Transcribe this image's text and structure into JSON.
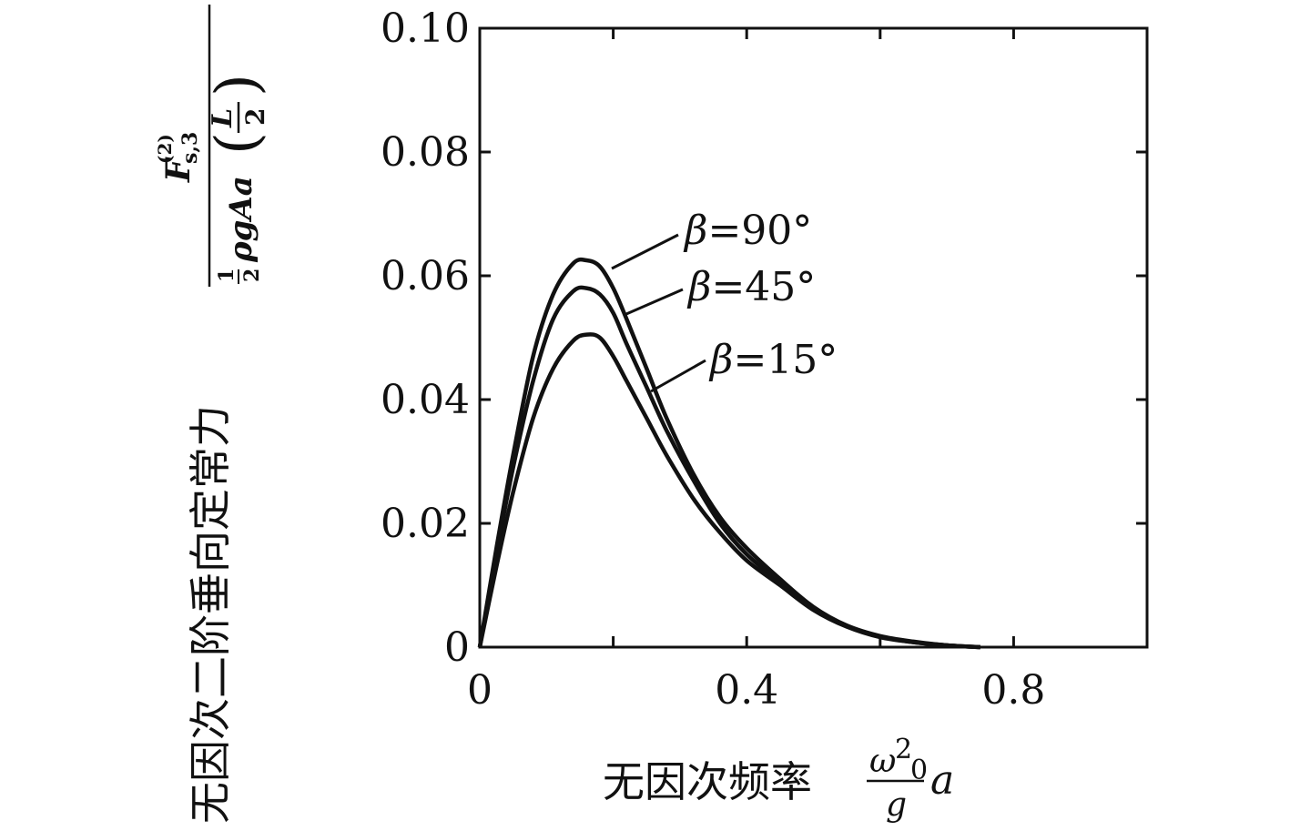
{
  "chart_data": {
    "type": "line",
    "xlabel": "无因次频率",
    "xlabel_formula": {
      "numerator": "ω",
      "numerator_sup": "2",
      "numerator_sub": "0",
      "denominator": "g",
      "trailing": "a"
    },
    "ylabel": "无因次二阶垂向定常力",
    "ylabel_formula": {
      "numerator": "F",
      "numerator_sup": "(2)",
      "numerator_sub": "s,3",
      "denominator_coef": "1",
      "denominator_coef_den": "2",
      "denominator_body": "ρgAa",
      "paren_num": "L",
      "paren_den": "2"
    },
    "xlim": [
      0,
      1.0
    ],
    "ylim": [
      0,
      0.1
    ],
    "x_ticks": [
      0,
      0.2,
      0.4,
      0.6,
      0.8,
      1.0
    ],
    "x_tick_labels": [
      "0",
      "0.4",
      "0.8"
    ],
    "x_tick_label_values": [
      0,
      0.4,
      0.8
    ],
    "y_ticks": [
      0,
      0.02,
      0.04,
      0.06,
      0.08,
      0.1
    ],
    "y_tick_labels": [
      "0",
      "0.02",
      "0.04",
      "0.06",
      "0.08",
      "0.10"
    ],
    "grid": false,
    "series": [
      {
        "name": "β=90°",
        "label_text": "β=90°",
        "x": [
          0,
          0.025,
          0.05,
          0.08,
          0.11,
          0.14,
          0.16,
          0.18,
          0.2,
          0.22,
          0.25,
          0.28,
          0.32,
          0.36,
          0.4,
          0.45,
          0.5,
          0.55,
          0.6,
          0.65,
          0.7,
          0.75
        ],
        "y": [
          0,
          0.016,
          0.031,
          0.047,
          0.057,
          0.062,
          0.0625,
          0.0615,
          0.058,
          0.053,
          0.045,
          0.037,
          0.028,
          0.021,
          0.016,
          0.011,
          0.0065,
          0.0035,
          0.0018,
          0.0009,
          0.0003,
          0
        ]
      },
      {
        "name": "β=45°",
        "label_text": "β=45°",
        "x": [
          0,
          0.025,
          0.05,
          0.08,
          0.11,
          0.14,
          0.16,
          0.18,
          0.2,
          0.22,
          0.25,
          0.28,
          0.32,
          0.36,
          0.4,
          0.45,
          0.5,
          0.55,
          0.6,
          0.65,
          0.7,
          0.75
        ],
        "y": [
          0,
          0.015,
          0.029,
          0.043,
          0.053,
          0.0575,
          0.058,
          0.057,
          0.054,
          0.049,
          0.042,
          0.035,
          0.027,
          0.02,
          0.015,
          0.0105,
          0.0063,
          0.0034,
          0.0017,
          0.0008,
          0.0003,
          0
        ]
      },
      {
        "name": "β=15°",
        "label_text": "β=15°",
        "x": [
          0,
          0.025,
          0.05,
          0.08,
          0.11,
          0.14,
          0.16,
          0.18,
          0.2,
          0.22,
          0.25,
          0.28,
          0.32,
          0.36,
          0.4,
          0.45,
          0.5,
          0.55,
          0.6,
          0.65,
          0.7,
          0.75
        ],
        "y": [
          0,
          0.013,
          0.025,
          0.037,
          0.045,
          0.0495,
          0.0505,
          0.05,
          0.047,
          0.043,
          0.037,
          0.031,
          0.024,
          0.0185,
          0.014,
          0.01,
          0.006,
          0.0033,
          0.0016,
          0.0008,
          0.0003,
          0
        ]
      }
    ],
    "colors": {
      "line": "#111111",
      "background": "#ffffff"
    }
  }
}
